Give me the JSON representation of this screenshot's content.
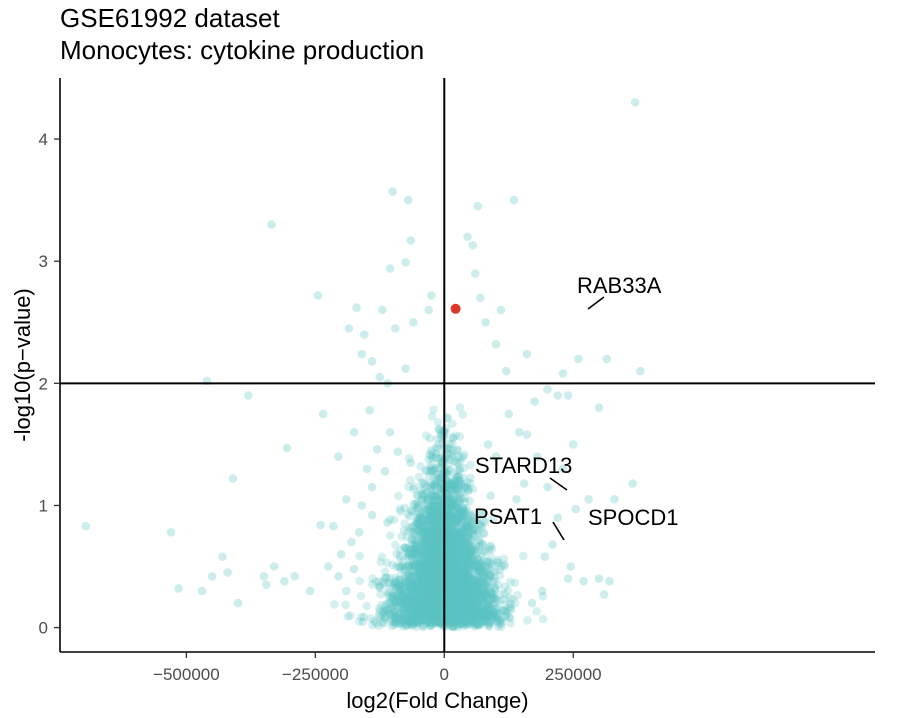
{
  "chart_data": {
    "type": "scatter",
    "title": "GSE61992 dataset",
    "subtitle": "Monocytes: cytokine production",
    "xlabel": "log2(Fold Change)",
    "ylabel": "-log10(p−value)",
    "xlim": [
      -745000,
      835000
    ],
    "ylim": [
      -0.2,
      4.5
    ],
    "x_ticks": [
      -500000,
      -250000,
      0,
      250000
    ],
    "x_tick_labels": [
      "−500000",
      "−250000",
      "0",
      "250000"
    ],
    "y_ticks": [
      0,
      1,
      2,
      3,
      4
    ],
    "y_tick_labels": [
      "0",
      "1",
      "2",
      "3",
      "4"
    ],
    "threshold_lines": {
      "x": 0,
      "y": 2
    },
    "point_color": "#5bc4c4",
    "highlight_color": "#d93a2b",
    "background_cloud_points": 4000,
    "scattered_points": [
      [
        370000,
        4.3
      ],
      [
        -335000,
        3.3
      ],
      [
        -100000,
        3.57
      ],
      [
        -70000,
        3.5
      ],
      [
        135000,
        3.5
      ],
      [
        65000,
        3.45
      ],
      [
        -65000,
        3.17
      ],
      [
        -75000,
        2.99
      ],
      [
        -105000,
        2.94
      ],
      [
        -245000,
        2.72
      ],
      [
        -170000,
        2.62
      ],
      [
        -120000,
        2.6
      ],
      [
        -95000,
        2.45
      ],
      [
        -60000,
        2.5
      ],
      [
        -30000,
        2.6
      ],
      [
        -25000,
        2.72
      ],
      [
        -185000,
        2.45
      ],
      [
        -155000,
        2.4
      ],
      [
        -160000,
        2.24
      ],
      [
        -140000,
        2.18
      ],
      [
        -125000,
        2.05
      ],
      [
        -110000,
        2.0
      ],
      [
        -75000,
        2.12
      ],
      [
        -460000,
        2.02
      ],
      [
        -380000,
        1.9
      ],
      [
        -235000,
        1.75
      ],
      [
        -305000,
        1.47
      ],
      [
        -410000,
        1.22
      ],
      [
        -530000,
        0.78
      ],
      [
        -695000,
        0.83
      ],
      [
        -515000,
        0.32
      ],
      [
        -400000,
        0.2
      ],
      [
        -420000,
        0.45
      ],
      [
        -310000,
        0.38
      ],
      [
        -260000,
        0.3
      ],
      [
        -240000,
        0.84
      ],
      [
        -215000,
        0.83
      ],
      [
        -160000,
        1.0
      ],
      [
        -130000,
        1.46
      ],
      [
        -105000,
        1.6
      ],
      [
        -115000,
        1.28
      ],
      [
        -140000,
        1.15
      ],
      [
        -200000,
        0.6
      ],
      [
        -175000,
        0.48
      ],
      [
        -140000,
        0.92
      ],
      [
        -110000,
        0.86
      ],
      [
        -90000,
        1.44
      ],
      [
        -65000,
        1.35
      ],
      [
        380000,
        2.1
      ],
      [
        315000,
        2.2
      ],
      [
        260000,
        2.2
      ],
      [
        230000,
        2.08
      ],
      [
        160000,
        2.24
      ],
      [
        120000,
        2.1
      ],
      [
        100000,
        2.32
      ],
      [
        80000,
        2.5
      ],
      [
        70000,
        2.7
      ],
      [
        60000,
        2.9
      ],
      [
        55000,
        3.13
      ],
      [
        45000,
        3.2
      ],
      [
        110000,
        2.6
      ],
      [
        160000,
        1.58
      ],
      [
        175000,
        1.85
      ],
      [
        200000,
        1.95
      ],
      [
        220000,
        1.9
      ],
      [
        250000,
        1.5
      ],
      [
        240000,
        1.9
      ],
      [
        300000,
        1.8
      ],
      [
        365000,
        1.18
      ],
      [
        330000,
        1.05
      ],
      [
        280000,
        1.05
      ],
      [
        255000,
        0.97
      ],
      [
        220000,
        0.9
      ],
      [
        210000,
        0.68
      ],
      [
        195000,
        0.58
      ],
      [
        245000,
        0.5
      ],
      [
        300000,
        0.4
      ],
      [
        320000,
        0.38
      ],
      [
        310000,
        0.27
      ],
      [
        270000,
        0.38
      ],
      [
        240000,
        0.4
      ],
      [
        130000,
        0.15
      ],
      [
        170000,
        0.2
      ],
      [
        190000,
        0.3
      ],
      [
        145000,
        1.6
      ],
      [
        125000,
        1.75
      ],
      [
        100000,
        1.4
      ],
      [
        85000,
        1.5
      ],
      [
        90000,
        1.08
      ],
      [
        155000,
        1.18
      ],
      [
        140000,
        1.05
      ],
      [
        200000,
        1.15
      ],
      [
        230000,
        1.3
      ],
      [
        180000,
        1.4
      ],
      [
        -150000,
        1.3
      ],
      [
        -190000,
        0.3
      ],
      [
        -350000,
        0.42
      ],
      [
        -330000,
        0.5
      ],
      [
        -290000,
        0.42
      ],
      [
        -345000,
        0.35
      ],
      [
        -470000,
        0.3
      ],
      [
        -450000,
        0.42
      ],
      [
        -430000,
        0.58
      ],
      [
        -225000,
        0.5
      ],
      [
        -205000,
        0.42
      ],
      [
        -180000,
        0.7
      ],
      [
        -205000,
        1.4
      ],
      [
        -190000,
        1.05
      ],
      [
        -165000,
        0.78
      ],
      [
        -145000,
        1.78
      ],
      [
        -175000,
        1.6
      ]
    ],
    "labeled_points": [
      {
        "label": "RAB33A",
        "x": 22000,
        "y": 2.61,
        "highlight": true
      },
      {
        "label": "STARD13",
        "x": -5000,
        "y": 1.12,
        "highlight": false
      },
      {
        "label": "PSAT1",
        "x": -10000,
        "y": 0.72,
        "highlight": false
      },
      {
        "label": "SPOCD1",
        "x": 5000,
        "y": 0.88,
        "highlight": false
      }
    ]
  }
}
